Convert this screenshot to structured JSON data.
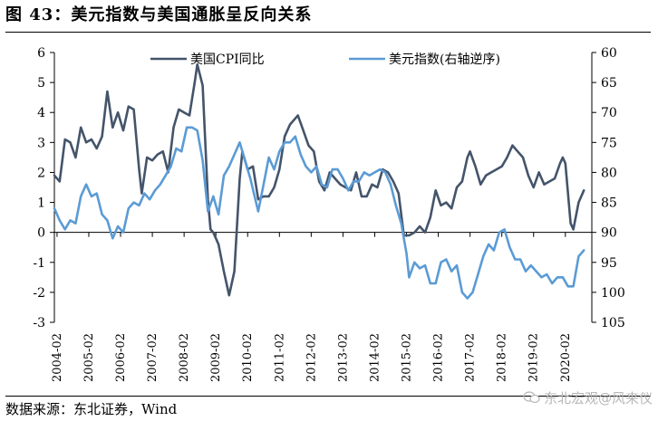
{
  "header": {
    "title": "图 43：美元指数与美国通胀呈反向关系"
  },
  "footer": {
    "source": "数据来源：东北证券，Wind",
    "watermark": "东北宏观@风来仪",
    "watermark_icon": "wechat-icon"
  },
  "chart_data": {
    "type": "line",
    "title": "图 43：美元指数与美国通胀呈反向关系",
    "legend_position": "top",
    "grid": false,
    "x_tick_labels": [
      "2004-02",
      "2005-02",
      "2006-02",
      "2007-02",
      "2008-02",
      "2009-02",
      "2010-02",
      "2011-02",
      "2012-02",
      "2013-02",
      "2014-02",
      "2015-02",
      "2016-02",
      "2017-02",
      "2018-02",
      "2019-02",
      "2020-02"
    ],
    "x_range": [
      "2004-01",
      "2020-12"
    ],
    "y_left": {
      "range": [
        -3,
        6
      ],
      "ticks": [
        -3,
        -2,
        -1,
        0,
        1,
        2,
        3,
        4,
        5,
        6
      ]
    },
    "y_right": {
      "range": [
        60,
        105
      ],
      "inverted": true,
      "ticks": [
        60,
        65,
        70,
        75,
        80,
        85,
        90,
        95,
        100,
        105
      ]
    },
    "series": [
      {
        "name": "美国CPI同比",
        "axis": "left",
        "color": "#44546a",
        "points": [
          [
            "2004-01",
            1.9
          ],
          [
            "2004-03",
            1.7
          ],
          [
            "2004-05",
            3.1
          ],
          [
            "2004-07",
            3.0
          ],
          [
            "2004-09",
            2.5
          ],
          [
            "2004-11",
            3.5
          ],
          [
            "2005-01",
            3.0
          ],
          [
            "2005-03",
            3.1
          ],
          [
            "2005-05",
            2.8
          ],
          [
            "2005-07",
            3.2
          ],
          [
            "2005-09",
            4.7
          ],
          [
            "2005-11",
            3.5
          ],
          [
            "2006-01",
            4.0
          ],
          [
            "2006-03",
            3.4
          ],
          [
            "2006-05",
            4.2
          ],
          [
            "2006-07",
            4.1
          ],
          [
            "2006-09",
            2.1
          ],
          [
            "2006-10",
            1.3
          ],
          [
            "2006-12",
            2.5
          ],
          [
            "2007-02",
            2.4
          ],
          [
            "2007-04",
            2.6
          ],
          [
            "2007-06",
            2.7
          ],
          [
            "2007-08",
            2.0
          ],
          [
            "2007-10",
            3.5
          ],
          [
            "2007-12",
            4.1
          ],
          [
            "2008-02",
            4.0
          ],
          [
            "2008-04",
            3.9
          ],
          [
            "2008-06",
            5.0
          ],
          [
            "2008-07",
            5.6
          ],
          [
            "2008-09",
            4.9
          ],
          [
            "2008-11",
            1.1
          ],
          [
            "2008-12",
            0.1
          ],
          [
            "2009-01",
            0.0
          ],
          [
            "2009-03",
            -0.4
          ],
          [
            "2009-05",
            -1.3
          ],
          [
            "2009-07",
            -2.1
          ],
          [
            "2009-09",
            -1.3
          ],
          [
            "2009-11",
            1.8
          ],
          [
            "2009-12",
            2.7
          ],
          [
            "2010-02",
            2.1
          ],
          [
            "2010-04",
            2.2
          ],
          [
            "2010-06",
            1.1
          ],
          [
            "2010-08",
            1.2
          ],
          [
            "2010-10",
            1.2
          ],
          [
            "2010-12",
            1.5
          ],
          [
            "2011-02",
            2.1
          ],
          [
            "2011-04",
            3.2
          ],
          [
            "2011-06",
            3.6
          ],
          [
            "2011-08",
            3.8
          ],
          [
            "2011-09",
            3.9
          ],
          [
            "2011-11",
            3.4
          ],
          [
            "2012-01",
            2.9
          ],
          [
            "2012-03",
            2.7
          ],
          [
            "2012-05",
            1.7
          ],
          [
            "2012-07",
            1.4
          ],
          [
            "2012-09",
            2.0
          ],
          [
            "2012-11",
            1.8
          ],
          [
            "2013-01",
            1.6
          ],
          [
            "2013-03",
            1.5
          ],
          [
            "2013-05",
            1.4
          ],
          [
            "2013-07",
            2.0
          ],
          [
            "2013-09",
            1.2
          ],
          [
            "2013-11",
            1.2
          ],
          [
            "2014-01",
            1.6
          ],
          [
            "2014-03",
            1.5
          ],
          [
            "2014-05",
            2.1
          ],
          [
            "2014-07",
            2.0
          ],
          [
            "2014-09",
            1.7
          ],
          [
            "2014-11",
            1.3
          ],
          [
            "2015-01",
            -0.1
          ],
          [
            "2015-03",
            -0.1
          ],
          [
            "2015-05",
            0.0
          ],
          [
            "2015-07",
            0.2
          ],
          [
            "2015-09",
            0.0
          ],
          [
            "2015-11",
            0.5
          ],
          [
            "2016-01",
            1.4
          ],
          [
            "2016-03",
            0.9
          ],
          [
            "2016-05",
            1.0
          ],
          [
            "2016-07",
            0.8
          ],
          [
            "2016-09",
            1.5
          ],
          [
            "2016-11",
            1.7
          ],
          [
            "2017-01",
            2.5
          ],
          [
            "2017-02",
            2.7
          ],
          [
            "2017-04",
            2.2
          ],
          [
            "2017-06",
            1.6
          ],
          [
            "2017-08",
            1.9
          ],
          [
            "2017-10",
            2.0
          ],
          [
            "2017-12",
            2.1
          ],
          [
            "2018-02",
            2.2
          ],
          [
            "2018-04",
            2.5
          ],
          [
            "2018-06",
            2.9
          ],
          [
            "2018-08",
            2.7
          ],
          [
            "2018-10",
            2.5
          ],
          [
            "2018-12",
            1.9
          ],
          [
            "2019-02",
            1.5
          ],
          [
            "2019-04",
            2.0
          ],
          [
            "2019-06",
            1.6
          ],
          [
            "2019-08",
            1.7
          ],
          [
            "2019-10",
            1.8
          ],
          [
            "2019-12",
            2.3
          ],
          [
            "2020-01",
            2.5
          ],
          [
            "2020-02",
            2.3
          ],
          [
            "2020-04",
            0.3
          ],
          [
            "2020-05",
            0.1
          ],
          [
            "2020-07",
            1.0
          ],
          [
            "2020-09",
            1.4
          ]
        ]
      },
      {
        "name": "美元指数(右轴逆序)",
        "axis": "right",
        "color": "#5b9bd5",
        "points": [
          [
            "2004-01",
            86
          ],
          [
            "2004-03",
            88
          ],
          [
            "2004-05",
            89.5
          ],
          [
            "2004-07",
            88
          ],
          [
            "2004-09",
            88.5
          ],
          [
            "2004-11",
            84
          ],
          [
            "2005-01",
            82
          ],
          [
            "2005-03",
            84
          ],
          [
            "2005-05",
            83.5
          ],
          [
            "2005-07",
            87
          ],
          [
            "2005-09",
            88
          ],
          [
            "2005-11",
            91
          ],
          [
            "2006-01",
            89
          ],
          [
            "2006-03",
            90
          ],
          [
            "2006-05",
            86
          ],
          [
            "2006-07",
            85
          ],
          [
            "2006-09",
            85.5
          ],
          [
            "2006-11",
            83.5
          ],
          [
            "2007-01",
            84.5
          ],
          [
            "2007-03",
            83
          ],
          [
            "2007-05",
            82
          ],
          [
            "2007-07",
            80.5
          ],
          [
            "2007-09",
            79
          ],
          [
            "2007-11",
            76
          ],
          [
            "2008-01",
            76.5
          ],
          [
            "2008-03",
            72.5
          ],
          [
            "2008-05",
            72.5
          ],
          [
            "2008-07",
            73
          ],
          [
            "2008-09",
            78
          ],
          [
            "2008-11",
            86.5
          ],
          [
            "2009-01",
            84
          ],
          [
            "2009-03",
            87
          ],
          [
            "2009-05",
            80.5
          ],
          [
            "2009-07",
            79
          ],
          [
            "2009-09",
            77
          ],
          [
            "2009-11",
            75
          ],
          [
            "2010-01",
            78
          ],
          [
            "2010-03",
            81
          ],
          [
            "2010-06",
            86.5
          ],
          [
            "2010-08",
            82
          ],
          [
            "2010-10",
            77.5
          ],
          [
            "2010-12",
            79.5
          ],
          [
            "2011-02",
            76.5
          ],
          [
            "2011-04",
            75
          ],
          [
            "2011-06",
            75
          ],
          [
            "2011-08",
            74
          ],
          [
            "2011-10",
            77
          ],
          [
            "2011-12",
            79
          ],
          [
            "2012-02",
            80
          ],
          [
            "2012-04",
            79
          ],
          [
            "2012-06",
            82
          ],
          [
            "2012-08",
            82.5
          ],
          [
            "2012-10",
            79.5
          ],
          [
            "2012-12",
            79.5
          ],
          [
            "2013-02",
            81
          ],
          [
            "2013-04",
            83
          ],
          [
            "2013-06",
            81.5
          ],
          [
            "2013-08",
            81.5
          ],
          [
            "2013-10",
            80
          ],
          [
            "2013-12",
            80.5
          ],
          [
            "2014-02",
            80
          ],
          [
            "2014-04",
            79.5
          ],
          [
            "2014-06",
            80
          ],
          [
            "2014-08",
            82
          ],
          [
            "2014-10",
            85.5
          ],
          [
            "2014-12",
            88.5
          ],
          [
            "2015-02",
            93.5
          ],
          [
            "2015-03",
            97.5
          ],
          [
            "2015-05",
            95
          ],
          [
            "2015-07",
            96
          ],
          [
            "2015-09",
            95.5
          ],
          [
            "2015-11",
            98.5
          ],
          [
            "2016-01",
            98.5
          ],
          [
            "2016-03",
            95
          ],
          [
            "2016-05",
            94.5
          ],
          [
            "2016-07",
            96.5
          ],
          [
            "2016-09",
            95.5
          ],
          [
            "2016-11",
            100
          ],
          [
            "2017-01",
            101
          ],
          [
            "2017-03",
            100
          ],
          [
            "2017-05",
            97
          ],
          [
            "2017-07",
            94
          ],
          [
            "2017-09",
            92
          ],
          [
            "2017-11",
            93
          ],
          [
            "2018-01",
            90
          ],
          [
            "2018-03",
            89.5
          ],
          [
            "2018-05",
            92.5
          ],
          [
            "2018-07",
            94.5
          ],
          [
            "2018-09",
            94.5
          ],
          [
            "2018-11",
            96.5
          ],
          [
            "2019-01",
            95.5
          ],
          [
            "2019-03",
            96.5
          ],
          [
            "2019-05",
            97.5
          ],
          [
            "2019-07",
            97
          ],
          [
            "2019-09",
            98.5
          ],
          [
            "2019-11",
            97.5
          ],
          [
            "2020-01",
            97.5
          ],
          [
            "2020-03",
            99
          ],
          [
            "2020-05",
            99
          ],
          [
            "2020-07",
            94
          ],
          [
            "2020-09",
            93
          ]
        ]
      }
    ]
  }
}
